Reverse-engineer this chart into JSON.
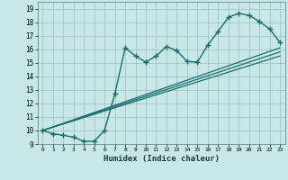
{
  "title": "",
  "xlabel": "Humidex (Indice chaleur)",
  "bg_color": "#c8e8e8",
  "line_color": "#1a6b6b",
  "xlim": [
    -0.5,
    23.5
  ],
  "ylim": [
    9.0,
    19.5
  ],
  "xticks": [
    0,
    1,
    2,
    3,
    4,
    5,
    6,
    7,
    8,
    9,
    10,
    11,
    12,
    13,
    14,
    15,
    16,
    17,
    18,
    19,
    20,
    21,
    22,
    23
  ],
  "yticks": [
    9,
    10,
    11,
    12,
    13,
    14,
    15,
    16,
    17,
    18,
    19
  ],
  "main_line_x": [
    0,
    1,
    2,
    3,
    4,
    5,
    6,
    7,
    8,
    9,
    10,
    11,
    12,
    13,
    14,
    15,
    16,
    17,
    18,
    19,
    20,
    21,
    22,
    23
  ],
  "main_line_y": [
    10.0,
    9.75,
    9.65,
    9.5,
    9.2,
    9.2,
    10.0,
    12.7,
    16.1,
    15.5,
    15.05,
    15.5,
    16.2,
    15.9,
    15.1,
    15.05,
    16.3,
    17.3,
    18.35,
    18.65,
    18.5,
    18.05,
    17.5,
    16.5
  ],
  "trend_lines": [
    {
      "x": [
        0,
        23
      ],
      "y": [
        10.0,
        15.5
      ]
    },
    {
      "x": [
        0,
        23
      ],
      "y": [
        10.0,
        16.1
      ]
    },
    {
      "x": [
        0,
        23
      ],
      "y": [
        10.0,
        15.8
      ]
    }
  ]
}
